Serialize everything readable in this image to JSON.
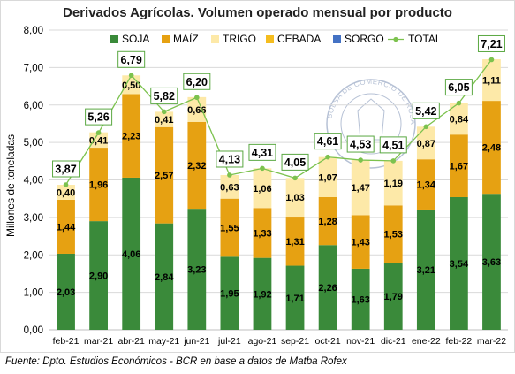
{
  "chart_data": {
    "type": "bar",
    "stacked": true,
    "title": "Derivados Agrícolas. Volumen operado mensual por producto",
    "ylabel": "Millones de toneladas",
    "xlabel": "",
    "ylim": [
      0,
      8
    ],
    "yticks": [
      "0,00",
      "1,00",
      "2,00",
      "3,00",
      "4,00",
      "5,00",
      "6,00",
      "7,00",
      "8,00"
    ],
    "grid": true,
    "legend_position": "top",
    "categories": [
      "feb-21",
      "mar-21",
      "abr-21",
      "may-21",
      "jun-21",
      "jul-21",
      "ago-21",
      "sep-21",
      "oct-21",
      "nov-21",
      "dic-21",
      "ene-22",
      "feb-22",
      "mar-22"
    ],
    "series": [
      {
        "name": "SOJA",
        "color": "#3a8a3a",
        "values": [
          2.03,
          2.9,
          4.06,
          2.84,
          3.23,
          1.95,
          1.92,
          1.71,
          2.26,
          1.63,
          1.79,
          3.21,
          3.54,
          3.63
        ],
        "labels": [
          "2,03",
          "2,90",
          "4,06",
          "2,84",
          "3,23",
          "1,95",
          "1,92",
          "1,71",
          "2,26",
          "1,63",
          "1,79",
          "3,21",
          "3,54",
          "3,63"
        ]
      },
      {
        "name": "MAÍZ",
        "color": "#e6a112",
        "values": [
          1.44,
          1.96,
          2.23,
          2.57,
          2.32,
          1.55,
          1.33,
          1.31,
          1.28,
          1.43,
          1.53,
          1.34,
          1.67,
          2.48
        ],
        "labels": [
          "1,44",
          "1,96",
          "2,23",
          "2,57",
          "2,32",
          "1,55",
          "1,33",
          "1,31",
          "1,28",
          "1,43",
          "1,53",
          "1,34",
          "1,67",
          "2,48"
        ]
      },
      {
        "name": "TRIGO",
        "color": "#fde9a8",
        "values": [
          0.4,
          0.41,
          0.5,
          0.41,
          0.66,
          0.63,
          1.06,
          1.03,
          1.07,
          1.47,
          1.19,
          0.87,
          0.84,
          1.11
        ],
        "labels": [
          "0,40",
          "0,41",
          "0,50",
          "0,41",
          "0,66",
          "0,63",
          "1,06",
          "1,03",
          "1,07",
          "1,47",
          "1,19",
          "0,87",
          "0,84",
          "1,11"
        ]
      },
      {
        "name": "CEBADA",
        "color": "#f5bd1f",
        "values": [
          0,
          0,
          0,
          0,
          0,
          0,
          0,
          0,
          0,
          0,
          0,
          0,
          0,
          0
        ]
      },
      {
        "name": "SORGO",
        "color": "#4472c4",
        "values": [
          0,
          0,
          0,
          0,
          0,
          0,
          0,
          0,
          0,
          0,
          0,
          0,
          0,
          0
        ]
      }
    ],
    "total": {
      "name": "TOTAL",
      "color": "#7cc24e",
      "values": [
        3.87,
        5.26,
        6.79,
        5.82,
        6.2,
        4.13,
        4.31,
        4.05,
        4.61,
        4.53,
        4.51,
        5.42,
        6.05,
        7.21
      ],
      "labels": [
        "3,87",
        "5,26",
        "6,79",
        "5,82",
        "6,20",
        "4,13",
        "4,31",
        "4,05",
        "4,61",
        "4,53",
        "4,51",
        "5,42",
        "6,05",
        "7,21"
      ]
    }
  },
  "source": "Fuente: Dpto. Estudios Económicos - BCR en base a datos de Matba Rofex",
  "watermark": "BOLSA DE COMERCIO DE ROSARIO"
}
